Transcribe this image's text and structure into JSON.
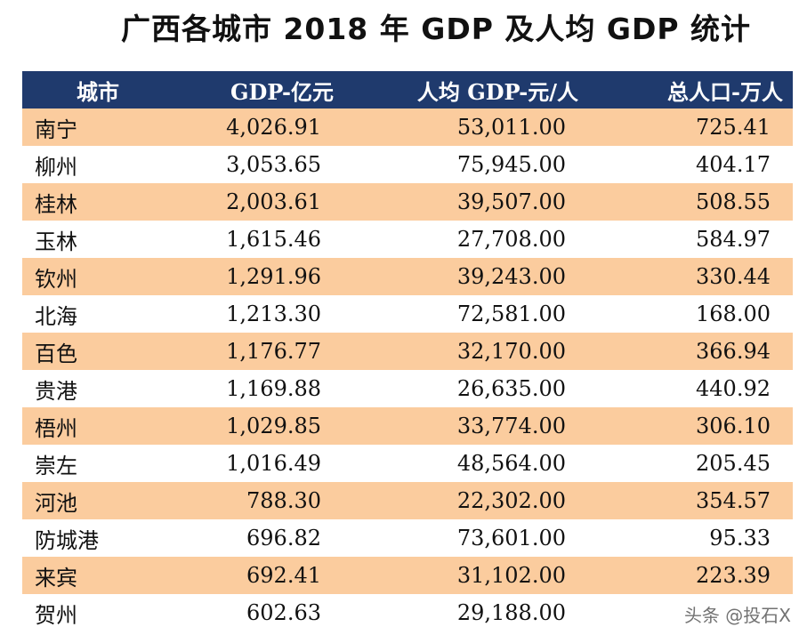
{
  "title": "广西各城市 2018 年 GDP 及人均 GDP 统计",
  "headers": [
    "城市",
    "GDP-亿元",
    "人均 GDP-元/人",
    "总人口-万人"
  ],
  "rows": [
    [
      "南宁",
      "4,026.91",
      "53,011.00",
      "725.41"
    ],
    [
      "柳州",
      "3,053.65",
      "75,945.00",
      "404.17"
    ],
    [
      "桂林",
      "2,003.61",
      "39,507.00",
      "508.55"
    ],
    [
      "玉林",
      "1,615.46",
      "27,708.00",
      "584.97"
    ],
    [
      "钦州",
      "1,291.96",
      "39,243.00",
      "330.44"
    ],
    [
      "北海",
      "1,213.30",
      "72,581.00",
      "168.00"
    ],
    [
      "百色",
      "1,176.77",
      "32,170.00",
      "366.94"
    ],
    [
      "贵港",
      "1,169.88",
      "26,635.00",
      "440.92"
    ],
    [
      "梧州",
      "1,029.85",
      "33,774.00",
      "306.10"
    ],
    [
      "崇左",
      "1,016.49",
      "48,564.00",
      "205.45"
    ],
    [
      "河池",
      "788.30",
      "22,302.00",
      "354.57"
    ],
    [
      "防城港",
      "696.82",
      "73,601.00",
      "95.33"
    ],
    [
      "来宾",
      "692.41",
      "31,102.00",
      "223.39"
    ],
    [
      "贺州",
      "602.63",
      "29,188.00",
      ""
    ]
  ],
  "watermark": "头条 @投石X",
  "colors": {
    "header_bg": "#1f3a6d",
    "row_shade": "#fbcc9e"
  }
}
